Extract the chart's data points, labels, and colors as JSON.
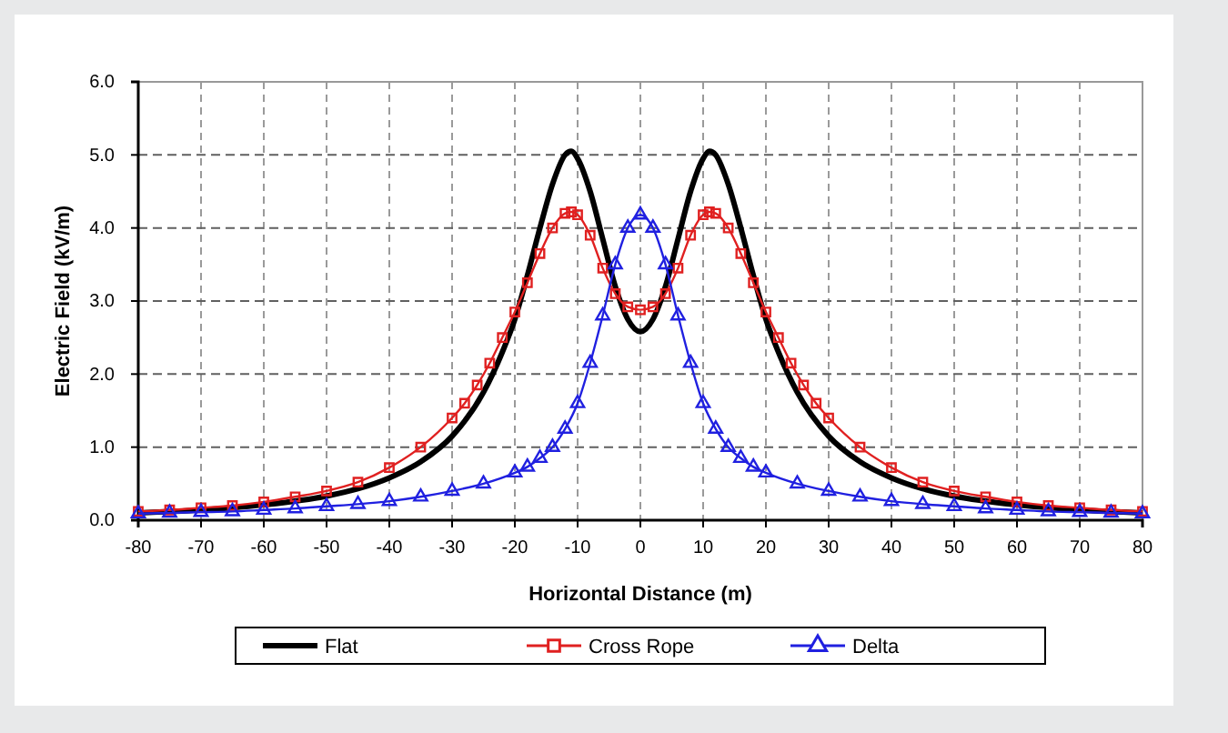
{
  "chart_data": {
    "type": "line",
    "xlabel": "Horizontal Distance (m)",
    "ylabel": "Electric Field (kV/m)",
    "xlim": [
      -80,
      80
    ],
    "xticks": [
      -80,
      -70,
      -60,
      -50,
      -40,
      -30,
      -20,
      -10,
      0,
      10,
      20,
      30,
      40,
      50,
      60,
      70,
      80
    ],
    "ylim": [
      0,
      6
    ],
    "yticks": [
      {
        "value": 0,
        "label": "0.0"
      },
      {
        "value": 1,
        "label": "1.0"
      },
      {
        "value": 2,
        "label": "2.0"
      },
      {
        "value": 3,
        "label": "3.0"
      },
      {
        "value": 4,
        "label": "4.0"
      },
      {
        "value": 5,
        "label": "5.0"
      },
      {
        "value": 6,
        "label": "6.0"
      }
    ],
    "grid": true,
    "legend": "bottom",
    "series": [
      {
        "name": "Flat",
        "color": "#000000",
        "marker": "none",
        "x": [
          -80,
          -70,
          -60,
          -50,
          -45,
          -40,
          -35,
          -30,
          -25,
          -22,
          -20,
          -18,
          -16,
          -14,
          -12,
          -11,
          -10,
          -8,
          -6,
          -4,
          -2,
          0,
          2,
          4,
          6,
          8,
          10,
          11,
          12,
          14,
          16,
          18,
          20,
          22,
          25,
          30,
          35,
          40,
          45,
          50,
          60,
          70,
          80
        ],
        "values": [
          0.1,
          0.14,
          0.21,
          0.33,
          0.43,
          0.58,
          0.8,
          1.15,
          1.75,
          2.3,
          2.75,
          3.35,
          4.0,
          4.6,
          5.0,
          5.05,
          4.95,
          4.5,
          3.85,
          3.2,
          2.75,
          2.58,
          2.75,
          3.2,
          3.85,
          4.5,
          4.95,
          5.05,
          5.0,
          4.6,
          4.0,
          3.35,
          2.75,
          2.3,
          1.75,
          1.15,
          0.8,
          0.58,
          0.43,
          0.33,
          0.21,
          0.14,
          0.1
        ]
      },
      {
        "name": "Cross Rope",
        "color": "#e02020",
        "marker": "square",
        "x": [
          -80,
          -75,
          -70,
          -65,
          -60,
          -55,
          -50,
          -45,
          -40,
          -35,
          -30,
          -28,
          -26,
          -24,
          -22,
          -20,
          -18,
          -16,
          -14,
          -12,
          -11,
          -10,
          -8,
          -6,
          -4,
          -2,
          0,
          2,
          4,
          6,
          8,
          10,
          11,
          12,
          14,
          16,
          18,
          20,
          22,
          24,
          26,
          28,
          30,
          35,
          40,
          45,
          50,
          55,
          60,
          65,
          70,
          75,
          80
        ],
        "values": [
          0.12,
          0.14,
          0.17,
          0.2,
          0.25,
          0.32,
          0.4,
          0.52,
          0.72,
          1.0,
          1.4,
          1.6,
          1.85,
          2.15,
          2.5,
          2.85,
          3.25,
          3.65,
          4.0,
          4.2,
          4.22,
          4.18,
          3.9,
          3.45,
          3.1,
          2.92,
          2.88,
          2.92,
          3.1,
          3.45,
          3.9,
          4.18,
          4.22,
          4.2,
          4.0,
          3.65,
          3.25,
          2.85,
          2.5,
          2.15,
          1.85,
          1.6,
          1.4,
          1.0,
          0.72,
          0.52,
          0.4,
          0.32,
          0.25,
          0.2,
          0.17,
          0.14,
          0.12
        ]
      },
      {
        "name": "Delta",
        "color": "#2020e0",
        "marker": "triangle",
        "x": [
          -80,
          -75,
          -70,
          -65,
          -60,
          -55,
          -50,
          -45,
          -40,
          -35,
          -30,
          -25,
          -20,
          -18,
          -16,
          -14,
          -12,
          -10,
          -8,
          -6,
          -4,
          -2,
          0,
          2,
          4,
          6,
          8,
          10,
          12,
          14,
          16,
          18,
          20,
          25,
          30,
          35,
          40,
          45,
          50,
          55,
          60,
          65,
          70,
          75,
          80
        ],
        "values": [
          0.09,
          0.1,
          0.11,
          0.12,
          0.14,
          0.16,
          0.19,
          0.22,
          0.26,
          0.32,
          0.4,
          0.5,
          0.65,
          0.73,
          0.85,
          1.0,
          1.25,
          1.6,
          2.15,
          2.8,
          3.5,
          4.0,
          4.18,
          4.0,
          3.5,
          2.8,
          2.15,
          1.6,
          1.25,
          1.0,
          0.85,
          0.73,
          0.65,
          0.5,
          0.4,
          0.32,
          0.26,
          0.22,
          0.19,
          0.16,
          0.14,
          0.12,
          0.11,
          0.1,
          0.09
        ]
      }
    ]
  }
}
